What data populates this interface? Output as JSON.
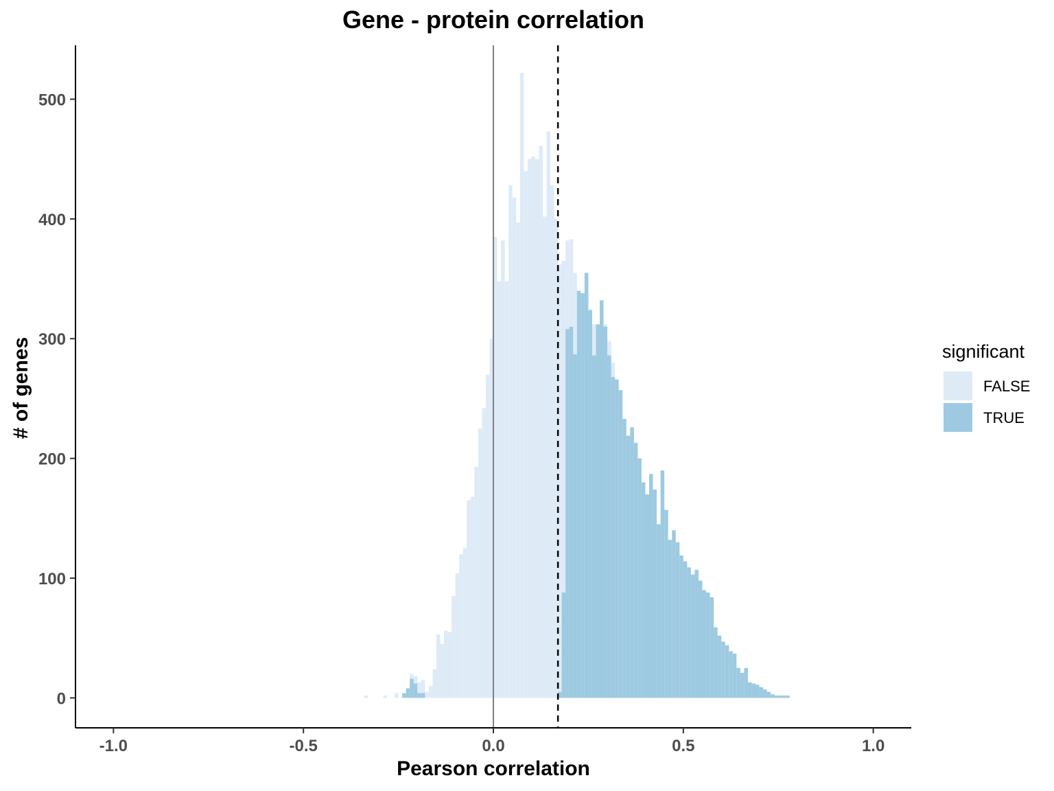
{
  "chart_data": {
    "type": "histogram",
    "title": "Gene - protein correlation",
    "xlabel": "Pearson correlation",
    "ylabel": "# of genes",
    "xlim": [
      -1.1,
      1.1
    ],
    "ylim": [
      -25,
      545
    ],
    "x_ticks": [
      -1.0,
      -0.5,
      0.0,
      0.5,
      1.0
    ],
    "x_tick_labels": [
      "-1.0",
      "-0.5",
      "0.0",
      "0.5",
      "1.0"
    ],
    "y_ticks": [
      0,
      100,
      200,
      300,
      400,
      500
    ],
    "y_tick_labels": [
      "0",
      "100",
      "200",
      "300",
      "400",
      "500"
    ],
    "bin_width": 0.01,
    "grid": false,
    "legend": {
      "title": "significant",
      "position": "right",
      "entries": [
        {
          "label": "FALSE",
          "color": "#deebf7"
        },
        {
          "label": "TRUE",
          "color": "#9ecae1"
        }
      ]
    },
    "reference_lines": [
      {
        "x": 0.0,
        "style": "solid",
        "color": "#808080"
      },
      {
        "x": 0.17,
        "style": "dashed",
        "color": "#000000"
      }
    ],
    "series": [
      {
        "name": "FALSE",
        "color": "#deebf7",
        "x": [
          -0.335,
          -0.285,
          -0.255,
          -0.225,
          -0.215,
          -0.205,
          -0.195,
          -0.185,
          -0.175,
          -0.165,
          -0.155,
          -0.145,
          -0.135,
          -0.125,
          -0.115,
          -0.105,
          -0.095,
          -0.085,
          -0.075,
          -0.065,
          -0.055,
          -0.045,
          -0.035,
          -0.025,
          -0.015,
          -0.005,
          0.005,
          0.015,
          0.025,
          0.035,
          0.045,
          0.055,
          0.065,
          0.075,
          0.085,
          0.095,
          0.105,
          0.115,
          0.125,
          0.135,
          0.145,
          0.155,
          0.165,
          0.175,
          0.185,
          0.195,
          0.205,
          0.215,
          0.225,
          0.235,
          0.245,
          0.255,
          0.265,
          0.275,
          0.285,
          0.295,
          0.305,
          0.315,
          0.325
        ],
        "values": [
          2,
          2,
          4,
          4,
          20,
          18,
          13,
          15,
          5,
          10,
          24,
          53,
          45,
          56,
          55,
          85,
          104,
          120,
          125,
          165,
          168,
          193,
          225,
          242,
          270,
          300,
          385,
          348,
          382,
          348,
          428,
          418,
          397,
          522,
          440,
          450,
          452,
          450,
          461,
          402,
          473,
          428,
          400,
          362,
          365,
          382,
          383,
          355,
          335,
          338,
          332,
          315,
          312,
          310,
          305,
          312,
          298,
          280,
          260
        ]
      },
      {
        "name": "TRUE",
        "color": "#9ecae1",
        "x": [
          -0.235,
          -0.225,
          -0.215,
          -0.205,
          -0.195,
          -0.185,
          0.175,
          0.185,
          0.195,
          0.205,
          0.215,
          0.225,
          0.235,
          0.245,
          0.255,
          0.265,
          0.275,
          0.285,
          0.295,
          0.305,
          0.315,
          0.325,
          0.335,
          0.345,
          0.355,
          0.365,
          0.375,
          0.385,
          0.395,
          0.405,
          0.415,
          0.425,
          0.435,
          0.445,
          0.455,
          0.465,
          0.475,
          0.485,
          0.495,
          0.505,
          0.515,
          0.525,
          0.535,
          0.545,
          0.555,
          0.565,
          0.575,
          0.585,
          0.595,
          0.605,
          0.615,
          0.625,
          0.635,
          0.645,
          0.655,
          0.665,
          0.675,
          0.685,
          0.695,
          0.705,
          0.715,
          0.725,
          0.735,
          0.745,
          0.755,
          0.765,
          0.775
        ],
        "values": [
          4,
          8,
          16,
          12,
          4,
          4,
          5,
          88,
          308,
          310,
          287,
          340,
          338,
          355,
          324,
          286,
          312,
          332,
          310,
          286,
          268,
          266,
          257,
          233,
          219,
          226,
          213,
          200,
          180,
          170,
          187,
          174,
          145,
          190,
          157,
          132,
          140,
          130,
          119,
          114,
          109,
          103,
          107,
          98,
          90,
          88,
          84,
          59,
          52,
          47,
          44,
          39,
          37,
          25,
          21,
          25,
          13,
          12,
          11,
          9,
          7,
          5,
          3,
          2,
          2,
          2,
          2
        ]
      }
    ]
  }
}
